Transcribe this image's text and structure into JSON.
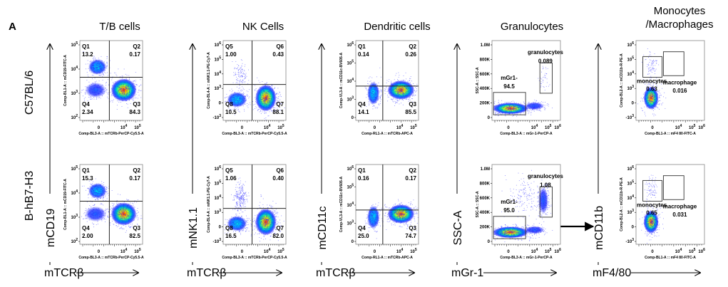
{
  "figure": {
    "panel_letter": "A",
    "row_labels": [
      "C57BL/6",
      "B-hB7-H3"
    ],
    "column_titles": [
      "T/B cells",
      "NK Cells",
      "Dendritic cells",
      "Granulocytes",
      "Monocytes\n/Macrophages"
    ],
    "column_title_lines": [
      [
        "T/B cells"
      ],
      [
        "NK Cells"
      ],
      [
        "Dendritic cells"
      ],
      [
        "Granulocytes"
      ],
      [
        "Monocytes",
        "/Macrophages"
      ]
    ],
    "y_markers": [
      "mCD19",
      "mNK1.1",
      "mCD11c",
      "SSC-A",
      "mCD11b"
    ],
    "x_markers": [
      "mTCRβ",
      "mTCRβ",
      "mTCRβ",
      "mGr-1",
      "mF4/80"
    ]
  },
  "chart_data": [
    {
      "type": "scatter",
      "kind": "quadrant",
      "column": "T/B cells",
      "xlabel": "Comp-BL3-A :: mTCRb-PerCP-Cy5.5-A",
      "ylabel": "Comp-BL1-A :: mCD19-FITC-A",
      "xticks": [
        "0",
        "10^4",
        "10^5"
      ],
      "yticks": [
        "10^2",
        "10^3",
        "10^4",
        "10^5"
      ],
      "rows": [
        {
          "sample": "C57BL/6",
          "quadrants": [
            {
              "name": "Q1",
              "value": "13.2"
            },
            {
              "name": "Q2",
              "value": "0.17"
            },
            {
              "name": "Q3",
              "value": "84.3"
            },
            {
              "name": "Q4",
              "value": "2.34"
            }
          ]
        },
        {
          "sample": "B-hB7-H3",
          "quadrants": [
            {
              "name": "Q1",
              "value": "15.3"
            },
            {
              "name": "Q2",
              "value": "0.17"
            },
            {
              "name": "Q3",
              "value": "82.5"
            },
            {
              "name": "Q4",
              "value": "2.00"
            }
          ]
        }
      ]
    },
    {
      "type": "scatter",
      "kind": "quadrant",
      "column": "NK Cells",
      "xlabel": "Comp-BL3-A :: mTCRb-PerCP-Cy5.5-A",
      "ylabel": "Comp-BL4-A :: mNK1.1-PE-Cy7-A",
      "xticks": [
        "0",
        "10^4",
        "10^5"
      ],
      "yticks": [
        "-10^3",
        "0",
        "10^3",
        "10^4",
        "10^5",
        "10^6"
      ],
      "rows": [
        {
          "sample": "C57BL/6",
          "quadrants": [
            {
              "name": "Q5",
              "value": "1.00"
            },
            {
              "name": "Q6",
              "value": "0.43"
            },
            {
              "name": "Q7",
              "value": "88.1"
            },
            {
              "name": "Q8",
              "value": "10.5"
            }
          ]
        },
        {
          "sample": "B-hB7-H3",
          "quadrants": [
            {
              "name": "Q5",
              "value": "1.06"
            },
            {
              "name": "Q6",
              "value": "0.40"
            },
            {
              "name": "Q7",
              "value": "82.0"
            },
            {
              "name": "Q8",
              "value": "16.5"
            }
          ]
        }
      ]
    },
    {
      "type": "scatter",
      "kind": "quadrant",
      "column": "Dendritic cells",
      "xlabel": "Comp-RL1-A :: mTCRb-APC-A",
      "ylabel": "Comp-VL3-A :: mCD11c-BV605-A",
      "xticks": [
        "0",
        "10^4",
        "10^5"
      ],
      "yticks": [
        "0",
        "10^3",
        "10^4",
        "10^5",
        "10^6"
      ],
      "rows": [
        {
          "sample": "C57BL/6",
          "quadrants": [
            {
              "name": "Q1",
              "value": "0.14"
            },
            {
              "name": "Q2",
              "value": "0.26"
            },
            {
              "name": "Q3",
              "value": "85.5"
            },
            {
              "name": "Q4",
              "value": "14.1"
            }
          ]
        },
        {
          "sample": "B-hB7-H3",
          "quadrants": [
            {
              "name": "Q1",
              "value": "0.16"
            },
            {
              "name": "Q2",
              "value": "0.17"
            },
            {
              "name": "Q3",
              "value": "74.7"
            },
            {
              "name": "Q4",
              "value": "25.0"
            }
          ]
        }
      ]
    },
    {
      "type": "scatter",
      "kind": "gate",
      "column": "Granulocytes",
      "xlabel": "Comp-BL3-A :: mGr-1-PerCP-A",
      "ylabel": "SSC-A :: SSC-A",
      "xticks": [
        "0",
        "10^4",
        "10^5",
        "10^6"
      ],
      "yticks": [
        "0",
        "200K",
        "400K",
        "600K",
        "800K",
        "1.0M"
      ],
      "rows": [
        {
          "sample": "C57BL/6",
          "gates": [
            {
              "name": "mGr1-",
              "value": "94.5"
            },
            {
              "name": "granulocytes",
              "value": "0.089"
            }
          ]
        },
        {
          "sample": "B-hB7-H3",
          "gates": [
            {
              "name": "mGr1-",
              "value": "95.0"
            },
            {
              "name": "granulocytes",
              "value": "1.08"
            }
          ]
        }
      ]
    },
    {
      "type": "scatter",
      "kind": "gate",
      "column": "Monocytes/Macrophages",
      "xlabel": "Comp-BL1-A :: mF4 80-FITC-A",
      "ylabel": "Comp-BL2-A :: mCD11b-R-PE-A",
      "xticks": [
        "0",
        "10^4",
        "10^5",
        "10^6"
      ],
      "yticks": [
        "-10^3",
        "0",
        "10^3",
        "10^4",
        "10^5",
        "10^6"
      ],
      "rows": [
        {
          "sample": "C57BL/6",
          "gates": [
            {
              "name": "monocytes",
              "value": "0.63"
            },
            {
              "name": "macrophage",
              "value": "0.016"
            }
          ]
        },
        {
          "sample": "B-hB7-H3",
          "gates": [
            {
              "name": "monocytes",
              "value": "0.65"
            },
            {
              "name": "macrophage",
              "value": "0.031"
            }
          ]
        }
      ]
    }
  ]
}
